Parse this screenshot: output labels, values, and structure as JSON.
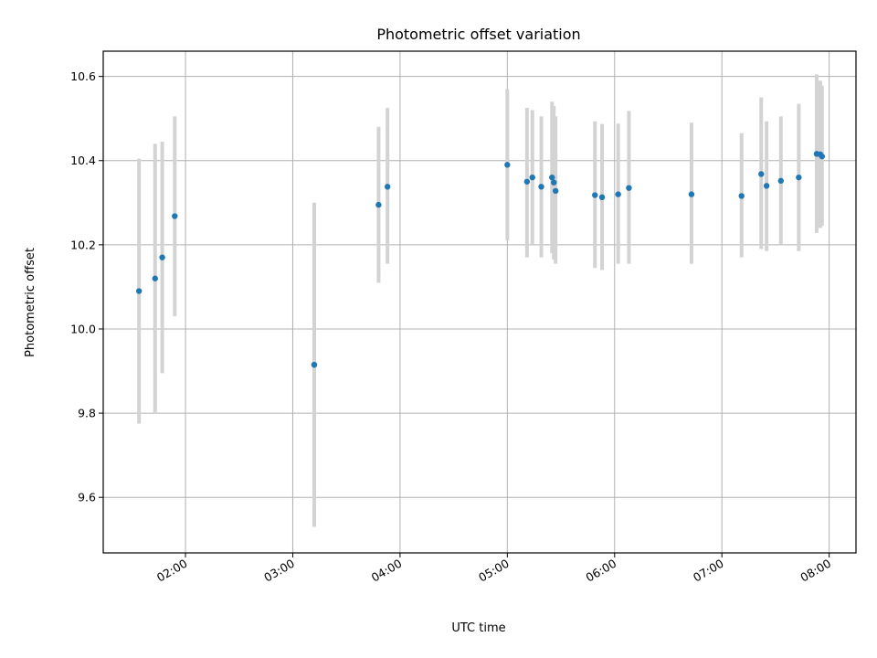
{
  "chart_data": {
    "type": "scatter",
    "title": "Photometric offset variation",
    "xlabel": "UTC time",
    "ylabel": "Photometric offset",
    "x_ticks": [
      "02:00",
      "03:00",
      "04:00",
      "05:00",
      "06:00",
      "07:00",
      "08:00"
    ],
    "y_ticks": [
      "9.6",
      "9.8",
      "10.0",
      "10.2",
      "10.4",
      "10.6"
    ],
    "xlim": [
      "01:14",
      "08:15"
    ],
    "ylim": [
      9.468,
      10.66
    ],
    "grid": true,
    "colors": {
      "point": "#1f77b4",
      "errorbar": "#d3d3d3",
      "grid": "#b0b0b0"
    },
    "points": [
      {
        "t": "01:34",
        "y": 10.09,
        "lo": 9.775,
        "hi": 10.405
      },
      {
        "t": "01:43",
        "y": 10.12,
        "lo": 9.8,
        "hi": 10.44
      },
      {
        "t": "01:47",
        "y": 10.17,
        "lo": 9.895,
        "hi": 10.445
      },
      {
        "t": "01:54",
        "y": 10.268,
        "lo": 10.03,
        "hi": 10.505
      },
      {
        "t": "03:12",
        "y": 9.915,
        "lo": 9.53,
        "hi": 10.3
      },
      {
        "t": "03:12",
        "y": 9.915,
        "lo": 9.535,
        "hi": 10.295
      },
      {
        "t": "03:48",
        "y": 10.295,
        "lo": 10.11,
        "hi": 10.48
      },
      {
        "t": "03:53",
        "y": 10.338,
        "lo": 10.155,
        "hi": 10.525
      },
      {
        "t": "05:00",
        "y": 10.39,
        "lo": 10.21,
        "hi": 10.57
      },
      {
        "t": "05:11",
        "y": 10.35,
        "lo": 10.17,
        "hi": 10.525
      },
      {
        "t": "05:14",
        "y": 10.36,
        "lo": 10.2,
        "hi": 10.52
      },
      {
        "t": "05:19",
        "y": 10.338,
        "lo": 10.17,
        "hi": 10.505
      },
      {
        "t": "05:25",
        "y": 10.36,
        "lo": 10.18,
        "hi": 10.54
      },
      {
        "t": "05:26",
        "y": 10.348,
        "lo": 10.165,
        "hi": 10.53
      },
      {
        "t": "05:27",
        "y": 10.328,
        "lo": 10.155,
        "hi": 10.505
      },
      {
        "t": "05:49",
        "y": 10.318,
        "lo": 10.145,
        "hi": 10.493
      },
      {
        "t": "05:53",
        "y": 10.313,
        "lo": 10.14,
        "hi": 10.487
      },
      {
        "t": "06:02",
        "y": 10.32,
        "lo": 10.155,
        "hi": 10.488
      },
      {
        "t": "06:08",
        "y": 10.335,
        "lo": 10.155,
        "hi": 10.518
      },
      {
        "t": "06:43",
        "y": 10.32,
        "lo": 10.155,
        "hi": 10.49
      },
      {
        "t": "07:11",
        "y": 10.316,
        "lo": 10.17,
        "hi": 10.465
      },
      {
        "t": "07:22",
        "y": 10.368,
        "lo": 10.19,
        "hi": 10.55
      },
      {
        "t": "07:25",
        "y": 10.34,
        "lo": 10.185,
        "hi": 10.493
      },
      {
        "t": "07:33",
        "y": 10.352,
        "lo": 10.2,
        "hi": 10.505
      },
      {
        "t": "07:43",
        "y": 10.36,
        "lo": 10.185,
        "hi": 10.535
      },
      {
        "t": "07:53",
        "y": 10.416,
        "lo": 10.228,
        "hi": 10.605
      },
      {
        "t": "07:55",
        "y": 10.415,
        "lo": 10.24,
        "hi": 10.59
      },
      {
        "t": "07:56",
        "y": 10.41,
        "lo": 10.245,
        "hi": 10.578
      }
    ]
  }
}
